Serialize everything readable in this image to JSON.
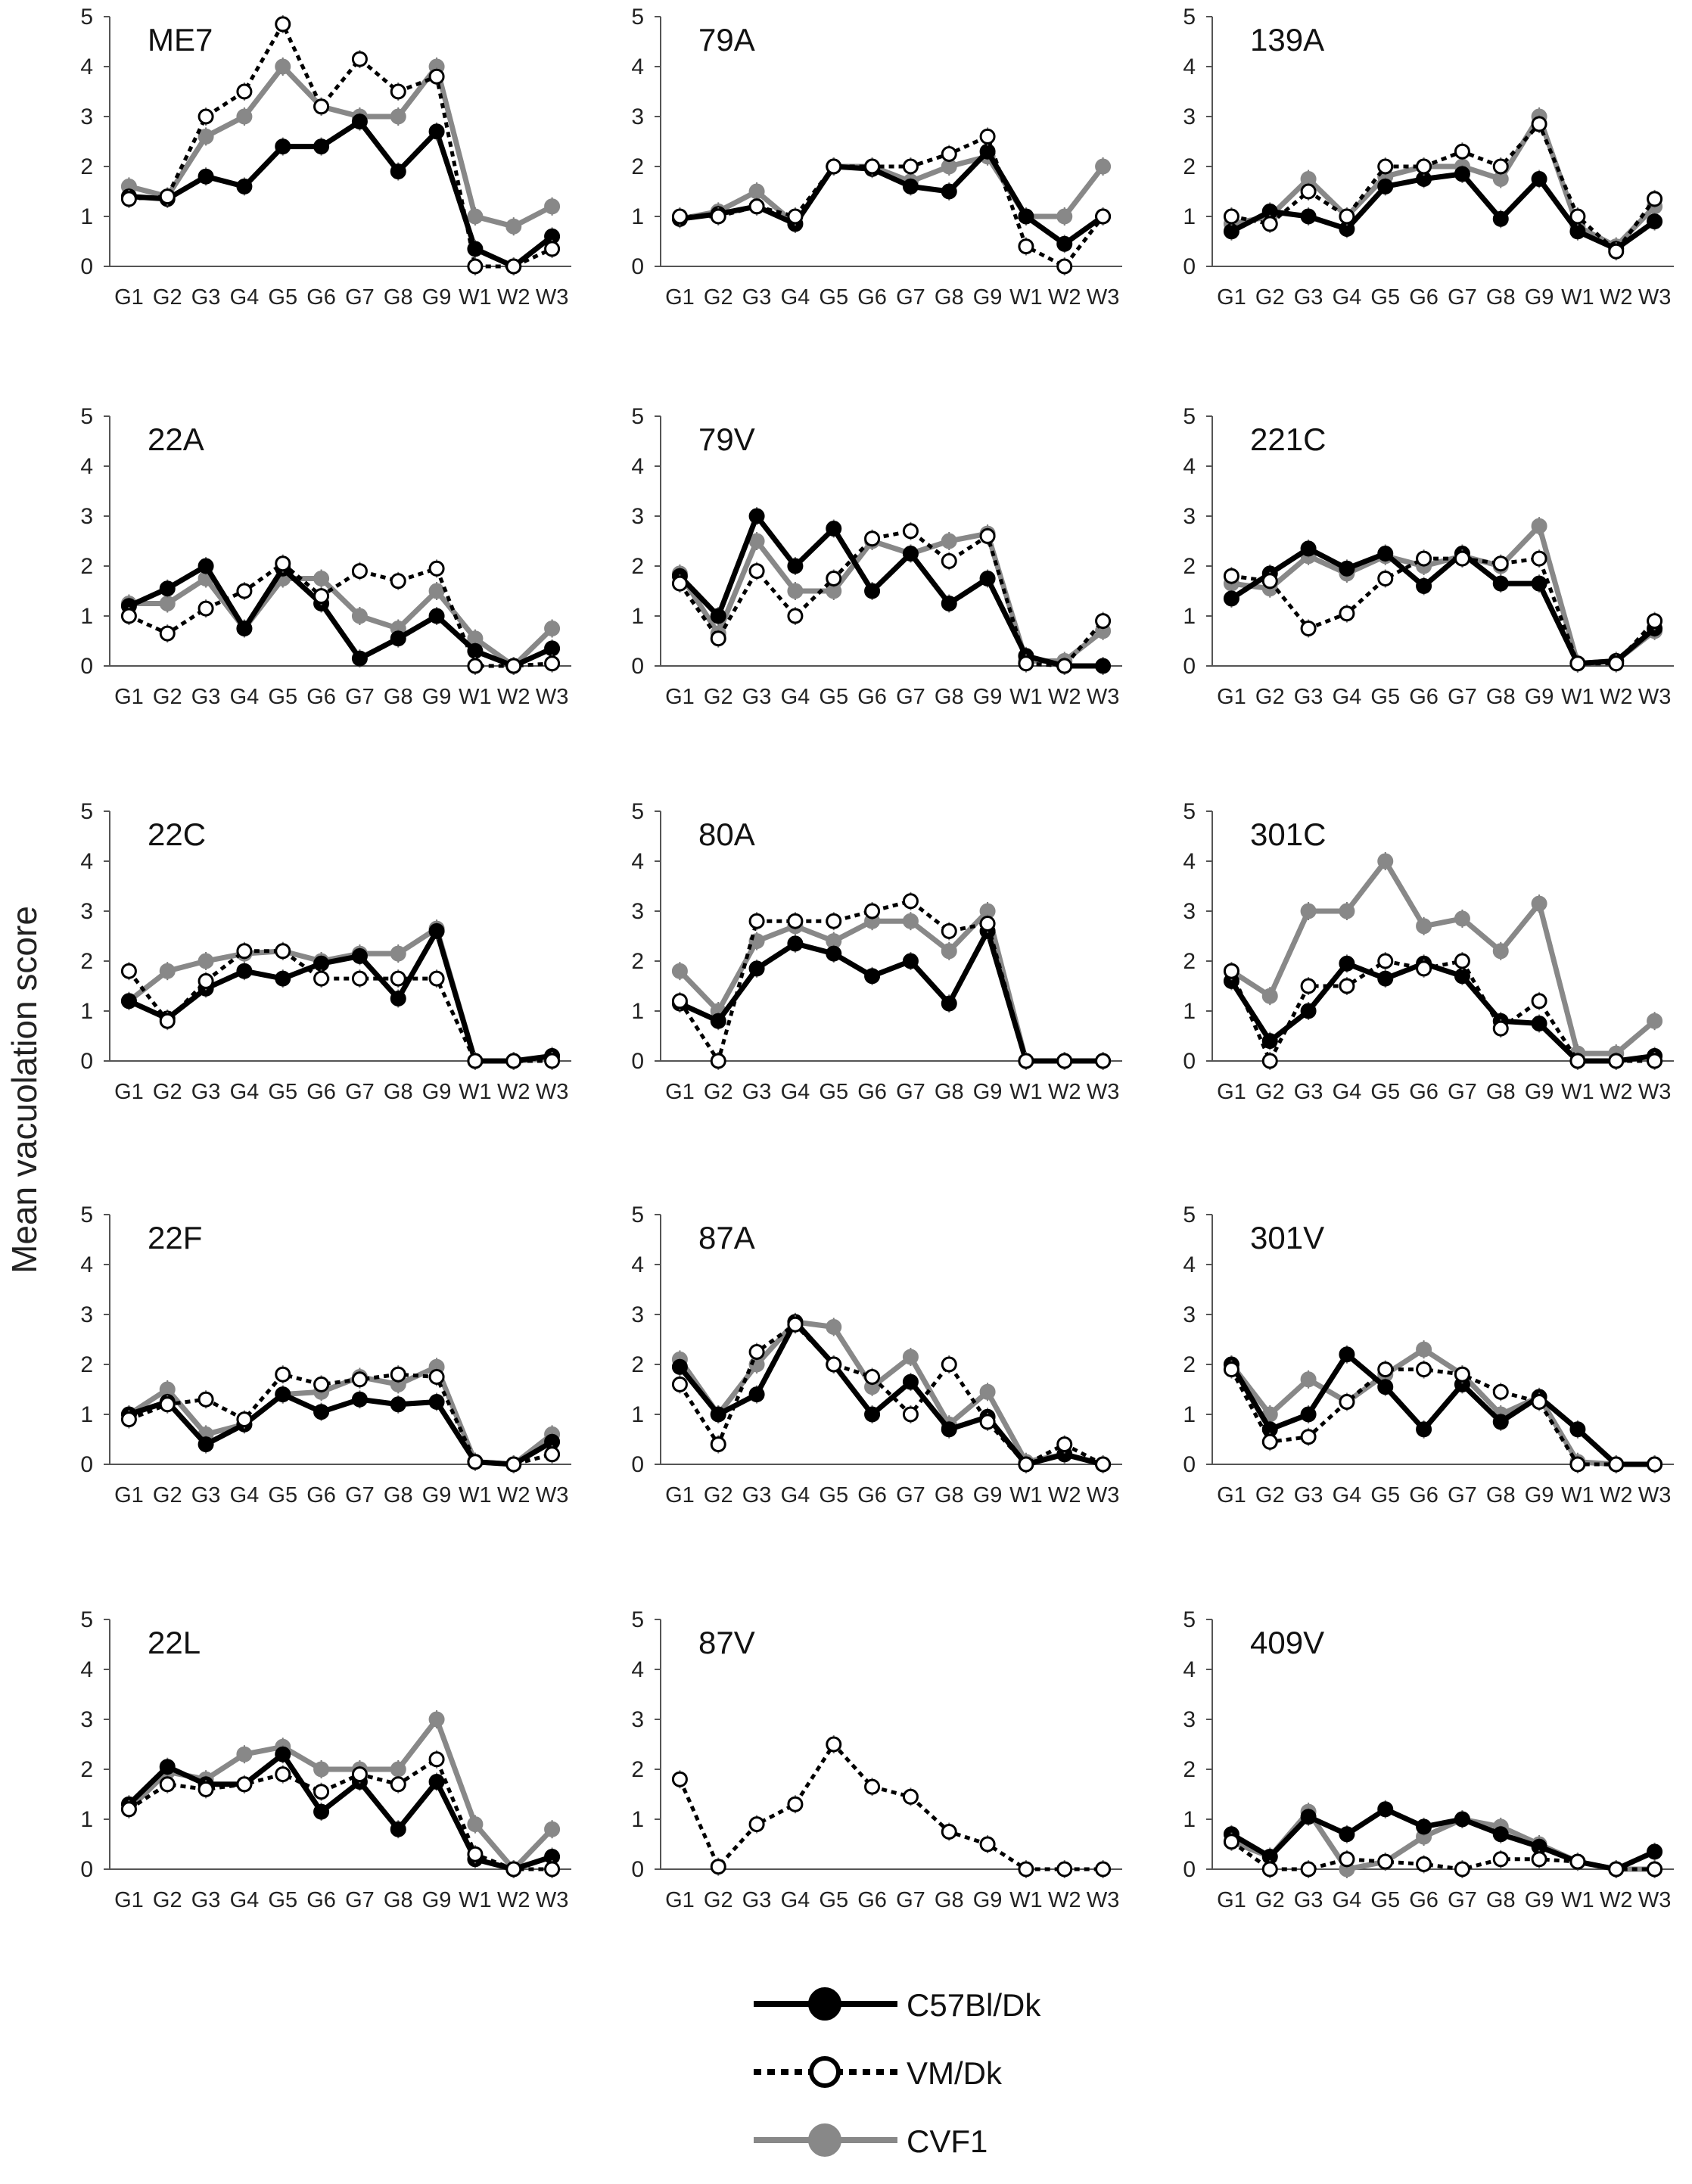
{
  "y_axis_label": "Mean vacuolation score",
  "colors": {
    "C57Bl/Dk": "#000000",
    "VM/Dk": "#000000",
    "CVF1": "#888888",
    "errorbar": "#777777",
    "axis": "#555555"
  },
  "chart_data": [
    {
      "type": "line",
      "title": "ME7",
      "categories": [
        "G1",
        "G2",
        "G3",
        "G4",
        "G5",
        "G6",
        "G7",
        "G8",
        "G9",
        "W1",
        "W2",
        "W3"
      ],
      "ylim": [
        0,
        5
      ],
      "series": [
        {
          "name": "C57Bl/Dk",
          "values": [
            1.4,
            1.35,
            1.8,
            1.6,
            2.4,
            2.4,
            2.9,
            1.9,
            2.7,
            0.35,
            0.0,
            0.6
          ]
        },
        {
          "name": "VM/Dk",
          "values": [
            1.35,
            1.4,
            3.0,
            3.5,
            4.85,
            3.2,
            4.15,
            3.5,
            3.8,
            0.0,
            0.0,
            0.35
          ]
        },
        {
          "name": "CVF1",
          "values": [
            1.6,
            1.4,
            2.6,
            3.0,
            4.0,
            3.2,
            3.0,
            3.0,
            4.0,
            1.0,
            0.8,
            1.2
          ]
        }
      ]
    },
    {
      "type": "line",
      "title": "79A",
      "categories": [
        "G1",
        "G2",
        "G3",
        "G4",
        "G5",
        "G6",
        "G7",
        "G8",
        "G9",
        "W1",
        "W2",
        "W3"
      ],
      "ylim": [
        0,
        5
      ],
      "series": [
        {
          "name": "C57Bl/Dk",
          "values": [
            0.95,
            1.05,
            1.2,
            0.85,
            2.0,
            1.95,
            1.6,
            1.5,
            2.3,
            1.0,
            0.45,
            1.0
          ]
        },
        {
          "name": "VM/Dk",
          "values": [
            1.0,
            1.0,
            1.2,
            1.0,
            2.0,
            2.0,
            2.0,
            2.25,
            2.6,
            0.4,
            0.0,
            1.0
          ]
        },
        {
          "name": "CVF1",
          "values": [
            0.95,
            1.1,
            1.5,
            0.85,
            2.0,
            2.0,
            1.7,
            2.0,
            2.2,
            1.0,
            1.0,
            2.0
          ]
        }
      ]
    },
    {
      "type": "line",
      "title": "139A",
      "categories": [
        "G1",
        "G2",
        "G3",
        "G4",
        "G5",
        "G6",
        "G7",
        "G8",
        "G9",
        "W1",
        "W2",
        "W3"
      ],
      "ylim": [
        0,
        5
      ],
      "series": [
        {
          "name": "C57Bl/Dk",
          "values": [
            0.7,
            1.1,
            1.0,
            0.75,
            1.6,
            1.75,
            1.85,
            0.95,
            1.75,
            0.7,
            0.35,
            0.9
          ]
        },
        {
          "name": "VM/Dk",
          "values": [
            1.0,
            0.85,
            1.5,
            1.0,
            2.0,
            2.0,
            2.3,
            2.0,
            2.85,
            1.0,
            0.3,
            1.35
          ]
        },
        {
          "name": "CVF1",
          "values": [
            0.85,
            1.0,
            1.75,
            1.0,
            1.8,
            2.0,
            2.0,
            1.75,
            3.0,
            0.8,
            0.4,
            1.2
          ]
        }
      ]
    },
    {
      "type": "line",
      "title": "22A",
      "categories": [
        "G1",
        "G2",
        "G3",
        "G4",
        "G5",
        "G6",
        "G7",
        "G8",
        "G9",
        "W1",
        "W2",
        "W3"
      ],
      "ylim": [
        0,
        5
      ],
      "series": [
        {
          "name": "C57Bl/Dk",
          "values": [
            1.2,
            1.55,
            2.0,
            0.75,
            1.95,
            1.25,
            0.15,
            0.55,
            1.0,
            0.3,
            0.0,
            0.35
          ]
        },
        {
          "name": "VM/Dk",
          "values": [
            1.0,
            0.65,
            1.15,
            1.5,
            2.05,
            1.4,
            1.9,
            1.7,
            1.95,
            0.0,
            0.0,
            0.05
          ]
        },
        {
          "name": "CVF1",
          "values": [
            1.25,
            1.25,
            1.75,
            0.75,
            1.75,
            1.75,
            1.0,
            0.75,
            1.5,
            0.55,
            0.0,
            0.75
          ]
        }
      ]
    },
    {
      "type": "line",
      "title": "79V",
      "categories": [
        "G1",
        "G2",
        "G3",
        "G4",
        "G5",
        "G6",
        "G7",
        "G8",
        "G9",
        "W1",
        "W2",
        "W3"
      ],
      "ylim": [
        0,
        5
      ],
      "series": [
        {
          "name": "C57Bl/Dk",
          "values": [
            1.8,
            1.0,
            3.0,
            2.0,
            2.75,
            1.5,
            2.25,
            1.25,
            1.75,
            0.2,
            0.0,
            0.0
          ]
        },
        {
          "name": "VM/Dk",
          "values": [
            1.65,
            0.55,
            1.9,
            1.0,
            1.75,
            2.55,
            2.7,
            2.1,
            2.6,
            0.05,
            0.0,
            0.9
          ]
        },
        {
          "name": "CVF1",
          "values": [
            1.85,
            0.65,
            2.5,
            1.5,
            1.5,
            2.5,
            2.25,
            2.5,
            2.65,
            0.1,
            0.1,
            0.7
          ]
        }
      ]
    },
    {
      "type": "line",
      "title": "221C",
      "categories": [
        "G1",
        "G2",
        "G3",
        "G4",
        "G5",
        "G6",
        "G7",
        "G8",
        "G9",
        "W1",
        "W2",
        "W3"
      ],
      "ylim": [
        0,
        5
      ],
      "series": [
        {
          "name": "C57Bl/Dk",
          "values": [
            1.35,
            1.85,
            2.35,
            1.95,
            2.25,
            1.6,
            2.25,
            1.65,
            1.65,
            0.05,
            0.1,
            0.75
          ]
        },
        {
          "name": "VM/Dk",
          "values": [
            1.8,
            1.7,
            0.75,
            1.05,
            1.75,
            2.15,
            2.15,
            2.05,
            2.15,
            0.05,
            0.05,
            0.9
          ]
        },
        {
          "name": "CVF1",
          "values": [
            1.65,
            1.55,
            2.2,
            1.85,
            2.2,
            2.0,
            2.2,
            2.0,
            2.8,
            0.05,
            0.1,
            0.7
          ]
        }
      ]
    },
    {
      "type": "line",
      "title": "22C",
      "categories": [
        "G1",
        "G2",
        "G3",
        "G4",
        "G5",
        "G6",
        "G7",
        "G8",
        "G9",
        "W1",
        "W2",
        "W3"
      ],
      "ylim": [
        0,
        5
      ],
      "series": [
        {
          "name": "C57Bl/Dk",
          "values": [
            1.2,
            0.85,
            1.45,
            1.8,
            1.65,
            1.95,
            2.1,
            1.25,
            2.6,
            0.0,
            0.0,
            0.1
          ]
        },
        {
          "name": "VM/Dk",
          "values": [
            1.8,
            0.8,
            1.6,
            2.2,
            2.2,
            1.65,
            1.65,
            1.65,
            1.65,
            0.0,
            0.0,
            0.0
          ]
        },
        {
          "name": "CVF1",
          "values": [
            1.2,
            1.8,
            2.0,
            2.15,
            2.2,
            2.0,
            2.15,
            2.15,
            2.65,
            0.0,
            0.0,
            0.05
          ]
        }
      ]
    },
    {
      "type": "line",
      "title": "80A",
      "categories": [
        "G1",
        "G2",
        "G3",
        "G4",
        "G5",
        "G6",
        "G7",
        "G8",
        "G9",
        "W1",
        "W2",
        "W3"
      ],
      "ylim": [
        0,
        5
      ],
      "series": [
        {
          "name": "C57Bl/Dk",
          "values": [
            1.15,
            0.8,
            1.85,
            2.35,
            2.15,
            1.7,
            2.0,
            1.15,
            2.6,
            0.0,
            0.0,
            0.0
          ]
        },
        {
          "name": "VM/Dk",
          "values": [
            1.2,
            0.0,
            2.8,
            2.8,
            2.8,
            3.0,
            3.2,
            2.6,
            2.75,
            0.0,
            0.0,
            0.0
          ]
        },
        {
          "name": "CVF1",
          "values": [
            1.8,
            1.0,
            2.4,
            2.7,
            2.4,
            2.8,
            2.8,
            2.2,
            3.0,
            0.0,
            0.0,
            0.0
          ]
        }
      ]
    },
    {
      "type": "line",
      "title": "301C",
      "categories": [
        "G1",
        "G2",
        "G3",
        "G4",
        "G5",
        "G6",
        "G7",
        "G8",
        "G9",
        "W1",
        "W2",
        "W3"
      ],
      "ylim": [
        0,
        5
      ],
      "series": [
        {
          "name": "C57Bl/Dk",
          "values": [
            1.6,
            0.4,
            1.0,
            1.95,
            1.65,
            1.95,
            1.7,
            0.8,
            0.75,
            0.0,
            0.0,
            0.1
          ]
        },
        {
          "name": "VM/Dk",
          "values": [
            1.8,
            0.0,
            1.5,
            1.5,
            2.0,
            1.85,
            2.0,
            0.65,
            1.2,
            0.0,
            0.0,
            0.0
          ]
        },
        {
          "name": "CVF1",
          "values": [
            1.8,
            1.3,
            3.0,
            3.0,
            4.0,
            2.7,
            2.85,
            2.2,
            3.15,
            0.15,
            0.15,
            0.8
          ]
        }
      ]
    },
    {
      "type": "line",
      "title": "22F",
      "categories": [
        "G1",
        "G2",
        "G3",
        "G4",
        "G5",
        "G6",
        "G7",
        "G8",
        "G9",
        "W1",
        "W2",
        "W3"
      ],
      "ylim": [
        0,
        5
      ],
      "series": [
        {
          "name": "C57Bl/Dk",
          "values": [
            1.0,
            1.25,
            0.4,
            0.8,
            1.4,
            1.05,
            1.3,
            1.2,
            1.25,
            0.05,
            0.0,
            0.45
          ]
        },
        {
          "name": "VM/Dk",
          "values": [
            0.9,
            1.2,
            1.3,
            0.9,
            1.8,
            1.6,
            1.7,
            1.8,
            1.75,
            0.05,
            0.0,
            0.2
          ]
        },
        {
          "name": "CVF1",
          "values": [
            1.0,
            1.5,
            0.6,
            0.8,
            1.4,
            1.45,
            1.75,
            1.6,
            1.95,
            0.05,
            0.0,
            0.6
          ]
        }
      ]
    },
    {
      "type": "line",
      "title": "87A",
      "categories": [
        "G1",
        "G2",
        "G3",
        "G4",
        "G5",
        "G6",
        "G7",
        "G8",
        "G9",
        "W1",
        "W2",
        "W3"
      ],
      "ylim": [
        0,
        5
      ],
      "series": [
        {
          "name": "C57Bl/Dk",
          "values": [
            1.95,
            1.0,
            1.4,
            2.85,
            2.0,
            1.0,
            1.65,
            0.7,
            0.95,
            0.0,
            0.2,
            0.0
          ]
        },
        {
          "name": "VM/Dk",
          "values": [
            1.6,
            0.4,
            2.25,
            2.8,
            2.0,
            1.75,
            1.0,
            2.0,
            0.85,
            0.0,
            0.4,
            0.0
          ]
        },
        {
          "name": "CVF1",
          "values": [
            2.1,
            1.0,
            2.0,
            2.85,
            2.75,
            1.55,
            2.15,
            0.8,
            1.45,
            0.05,
            0.2,
            0.0
          ]
        }
      ]
    },
    {
      "type": "line",
      "title": "301V",
      "categories": [
        "G1",
        "G2",
        "G3",
        "G4",
        "G5",
        "G6",
        "G7",
        "G8",
        "G9",
        "W1",
        "W2",
        "W3"
      ],
      "ylim": [
        0,
        5
      ],
      "series": [
        {
          "name": "C57Bl/Dk",
          "values": [
            2.0,
            0.7,
            1.0,
            2.2,
            1.55,
            0.7,
            1.6,
            0.85,
            1.35,
            0.7,
            0.0,
            0.0
          ]
        },
        {
          "name": "VM/Dk",
          "values": [
            1.9,
            0.45,
            0.55,
            1.25,
            1.9,
            1.9,
            1.8,
            1.45,
            1.25,
            0.0,
            0.0,
            0.0
          ]
        },
        {
          "name": "CVF1",
          "values": [
            2.0,
            1.0,
            1.7,
            1.25,
            1.8,
            2.3,
            1.8,
            1.0,
            1.35,
            0.05,
            0.0,
            0.0
          ]
        }
      ]
    },
    {
      "type": "line",
      "title": "22L",
      "categories": [
        "G1",
        "G2",
        "G3",
        "G4",
        "G5",
        "G6",
        "G7",
        "G8",
        "G9",
        "W1",
        "W2",
        "W3"
      ],
      "ylim": [
        0,
        5
      ],
      "series": [
        {
          "name": "C57Bl/Dk",
          "values": [
            1.3,
            2.05,
            1.7,
            1.7,
            2.3,
            1.15,
            1.75,
            0.8,
            1.75,
            0.2,
            0.0,
            0.25
          ]
        },
        {
          "name": "VM/Dk",
          "values": [
            1.2,
            1.7,
            1.6,
            1.7,
            1.9,
            1.55,
            1.9,
            1.7,
            2.2,
            0.3,
            0.0,
            0.0
          ]
        },
        {
          "name": "CVF1",
          "values": [
            1.2,
            1.95,
            1.8,
            2.3,
            2.45,
            2.0,
            2.0,
            2.0,
            3.0,
            0.9,
            0.0,
            0.8
          ]
        }
      ]
    },
    {
      "type": "line",
      "title": "87V",
      "categories": [
        "G1",
        "G2",
        "G3",
        "G4",
        "G5",
        "G6",
        "G7",
        "G8",
        "G9",
        "W1",
        "W2",
        "W3"
      ],
      "ylim": [
        0,
        5
      ],
      "series": [
        {
          "name": "VM/Dk",
          "values": [
            1.8,
            0.05,
            0.9,
            1.3,
            2.5,
            1.65,
            1.45,
            0.75,
            0.5,
            0.0,
            0.0,
            0.0
          ]
        }
      ]
    },
    {
      "type": "line",
      "title": "409V",
      "categories": [
        "G1",
        "G2",
        "G3",
        "G4",
        "G5",
        "G6",
        "G7",
        "G8",
        "G9",
        "W1",
        "W2",
        "W3"
      ],
      "ylim": [
        0,
        5
      ],
      "series": [
        {
          "name": "C57Bl/Dk",
          "values": [
            0.7,
            0.25,
            1.05,
            0.7,
            1.2,
            0.85,
            1.0,
            0.7,
            0.45,
            0.15,
            0.0,
            0.35
          ]
        },
        {
          "name": "VM/Dk",
          "values": [
            0.55,
            0.0,
            0.0,
            0.2,
            0.15,
            0.1,
            0.0,
            0.2,
            0.2,
            0.15,
            0.0,
            0.0
          ]
        },
        {
          "name": "CVF1",
          "values": [
            0.55,
            0.25,
            1.15,
            0.0,
            0.15,
            0.65,
            1.0,
            0.85,
            0.5,
            0.15,
            0.0,
            0.0
          ]
        }
      ]
    }
  ],
  "legend": [
    {
      "name": "C57Bl/Dk",
      "label": "C57Bl/Dk"
    },
    {
      "name": "VM/Dk",
      "label": "VM/Dk"
    },
    {
      "name": "CVF1",
      "label": "CVF1"
    }
  ]
}
